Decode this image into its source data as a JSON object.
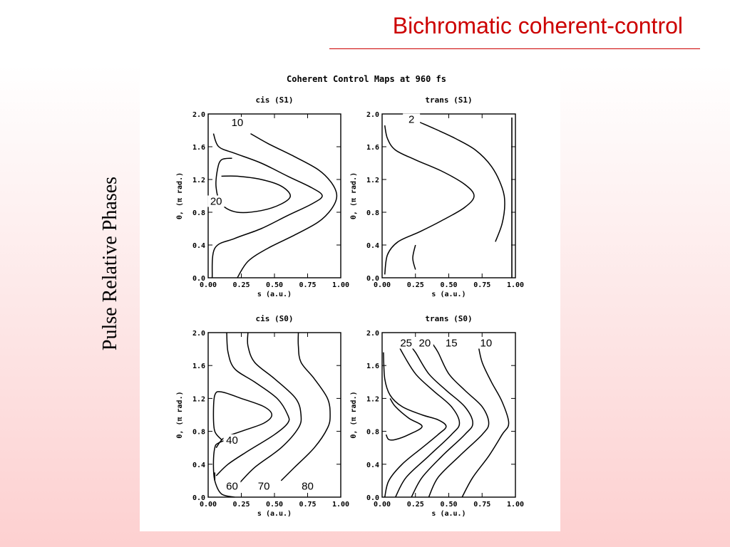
{
  "slide": {
    "title": "Bichromatic coherent-control",
    "side_label": "Pulse Relative Phases"
  },
  "figure": {
    "title": "Coherent Control Maps at 960 fs",
    "x_ticks": [
      "0.00",
      "0.25",
      "0.50",
      "0.75",
      "1.00"
    ],
    "y_ticks": [
      "0.0",
      "0.4",
      "0.8",
      "1.2",
      "1.6",
      "2.0"
    ],
    "panels": [
      {
        "title": "cis (S1)",
        "xlabel": "s (a.u.)",
        "ylabel": "θ, (π rad.)",
        "labels": [
          "10",
          "20"
        ]
      },
      {
        "title": "trans (S1)",
        "xlabel": "s (a.u.)",
        "ylabel": "θ, (π rad.)",
        "labels": [
          "2"
        ]
      },
      {
        "title": "cis (S0)",
        "xlabel": "s (a.u.)",
        "ylabel": "θ, (π rad.)",
        "labels": [
          "40",
          "60",
          "70",
          "80"
        ]
      },
      {
        "title": "trans (S0)",
        "xlabel": "s (a.u.)",
        "ylabel": "θ, (π rad.)",
        "labels": [
          "25",
          "20",
          "15",
          "10"
        ]
      }
    ]
  },
  "colors": {
    "title": "#cc0000",
    "rule": "#cc0000",
    "ink": "#000000"
  }
}
